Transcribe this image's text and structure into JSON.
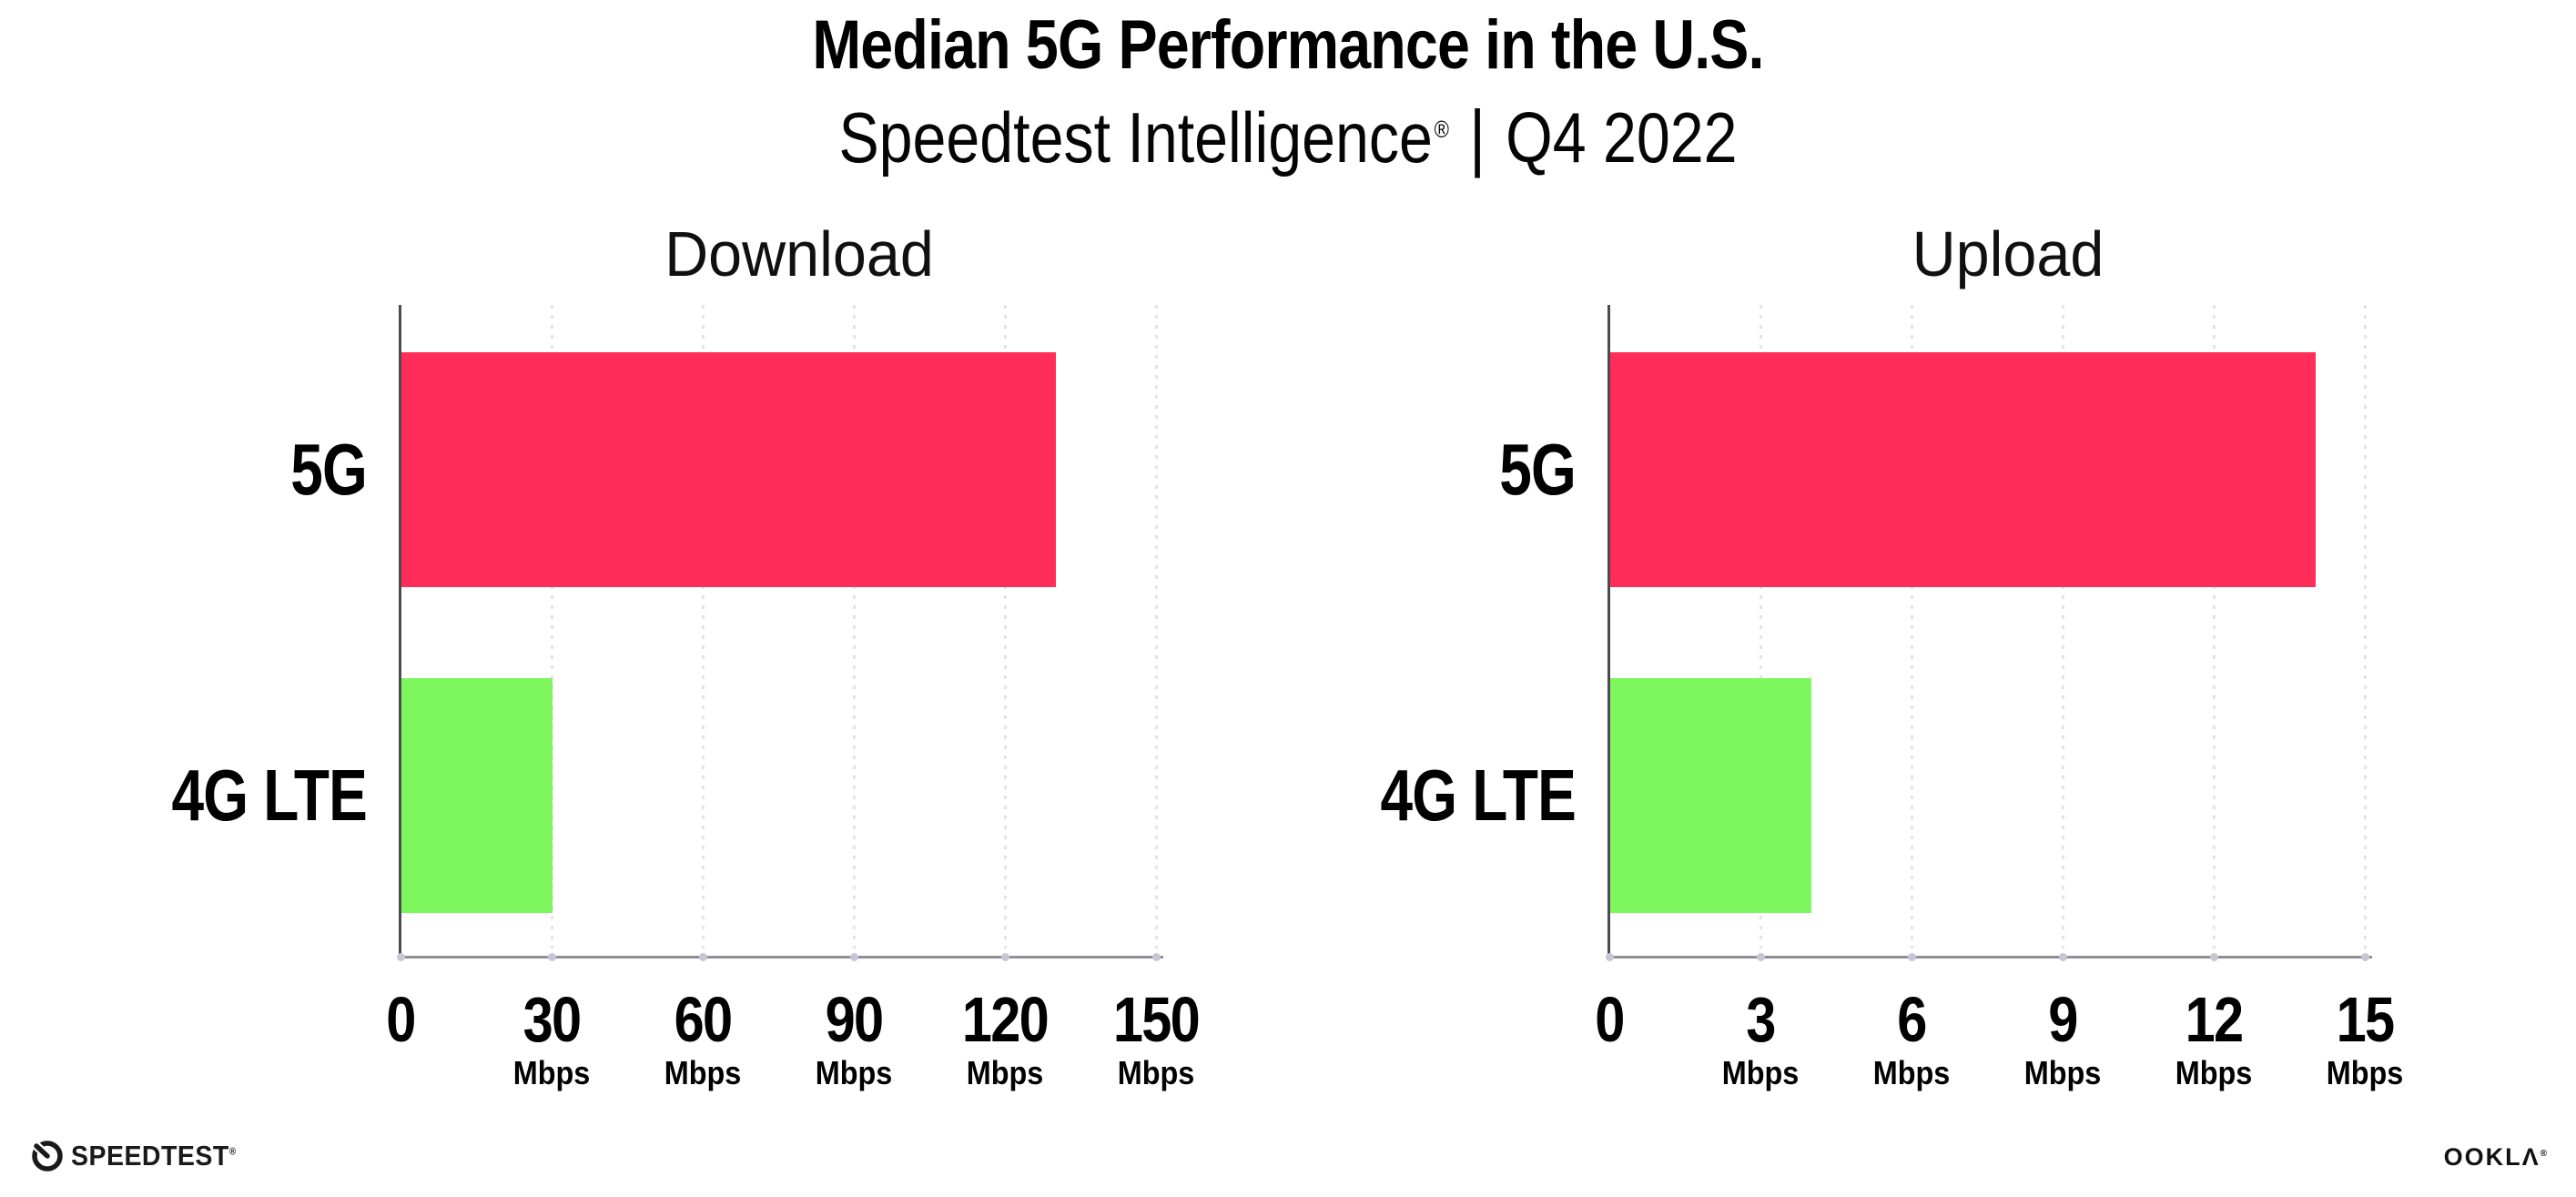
{
  "header": {
    "title": "Median 5G Performance in the U.S.",
    "subtitle_product": "Speedtest Intelligence",
    "subtitle_regmark": "®",
    "subtitle_divider": "|",
    "subtitle_period": "Q4 2022"
  },
  "chart_data": [
    {
      "type": "bar",
      "orientation": "horizontal",
      "title": "Download",
      "categories": [
        "5G",
        "4G LTE"
      ],
      "values": [
        130,
        30
      ],
      "unit": "Mbps",
      "xlim": [
        0,
        150
      ],
      "xticks": [
        0,
        30,
        60,
        90,
        120,
        150
      ],
      "tick_unit_label": "Mbps",
      "bar_colors": [
        "#ff2d5a",
        "#7ef75e"
      ],
      "grid": "dotted-vertical",
      "legend": "none"
    },
    {
      "type": "bar",
      "orientation": "horizontal",
      "title": "Upload",
      "categories": [
        "5G",
        "4G LTE"
      ],
      "values": [
        14,
        4
      ],
      "unit": "Mbps",
      "xlim": [
        0,
        15
      ],
      "xticks": [
        0,
        3,
        6,
        9,
        12,
        15
      ],
      "tick_unit_label": "Mbps",
      "bar_colors": [
        "#ff2d5a",
        "#7ef75e"
      ],
      "grid": "dotted-vertical",
      "legend": "none"
    }
  ],
  "footer": {
    "speedtest_wordmark": "SPEEDTEST",
    "speedtest_trademark": "®",
    "ookla_wordmark_oo": "OO",
    "ookla_wordmark_k": "K",
    "ookla_wordmark_l": "L",
    "ookla_wordmark_a": "Λ",
    "ookla_trademark": "®"
  },
  "colors": {
    "bar_5g": "#ff2d5a",
    "bar_4g_lte": "#7ef75e",
    "y_axis": "#4a4a50",
    "x_axis": "#8f8f97",
    "gridline_dot": "#e3e3ee",
    "tick_dot": "#c6c6d4",
    "text": "#000000",
    "background": "#ffffff"
  }
}
